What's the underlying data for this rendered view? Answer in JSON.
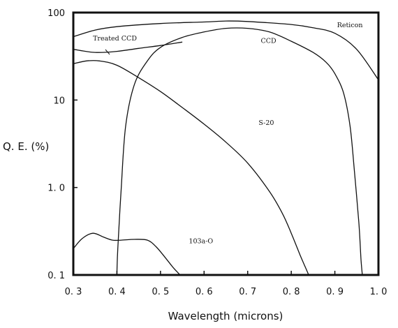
{
  "chart_data": {
    "type": "line",
    "ylabel": "Q. E. (%)",
    "xlabel": "Wavelength (microns)",
    "xlim": [
      0.3,
      1.0
    ],
    "ylim": [
      0.1,
      100
    ],
    "yscale": "log",
    "grid": false,
    "x_ticks": [
      {
        "value": 0.3,
        "label": "0. 3"
      },
      {
        "value": 0.4,
        "label": "0. 4"
      },
      {
        "value": 0.5,
        "label": "0. 5"
      },
      {
        "value": 0.6,
        "label": "0. 6"
      },
      {
        "value": 0.7,
        "label": "0. 7"
      },
      {
        "value": 0.8,
        "label": "0. 8"
      },
      {
        "value": 0.9,
        "label": "0. 9"
      },
      {
        "value": 1.0,
        "label": "1. 0"
      }
    ],
    "y_ticks": [
      {
        "value": 100,
        "label": "100"
      },
      {
        "value": 10,
        "label": "10"
      },
      {
        "value": 1,
        "label": "1. 0"
      },
      {
        "value": 0.1,
        "label": "0. 1"
      }
    ],
    "series": [
      {
        "name": "Reticon",
        "x": [
          0.3,
          0.35,
          0.4,
          0.5,
          0.6,
          0.65,
          0.7,
          0.8,
          0.85,
          0.9,
          0.95,
          1.0
        ],
        "y": [
          53,
          63,
          69,
          75,
          78,
          80,
          79,
          73,
          67,
          58,
          38,
          17
        ]
      },
      {
        "name": "Treated CCD",
        "x": [
          0.3,
          0.35,
          0.4,
          0.45,
          0.5,
          0.55
        ],
        "y": [
          38,
          35,
          36,
          39,
          42,
          46
        ]
      },
      {
        "name": "CCD",
        "x": [
          0.4,
          0.402,
          0.41,
          0.42,
          0.44,
          0.47,
          0.5,
          0.55,
          0.6,
          0.65,
          0.7,
          0.75,
          0.8,
          0.85,
          0.88,
          0.9,
          0.92,
          0.935,
          0.945,
          0.955,
          0.96,
          0.963
        ],
        "y": [
          0.1,
          0.2,
          1.0,
          5.0,
          15,
          28,
          40,
          52,
          60,
          66,
          66,
          60,
          47,
          35,
          27,
          20,
          12,
          5,
          1.5,
          0.4,
          0.15,
          0.1
        ]
      },
      {
        "name": "S-20",
        "x": [
          0.3,
          0.33,
          0.36,
          0.4,
          0.45,
          0.5,
          0.55,
          0.6,
          0.65,
          0.7,
          0.75,
          0.78,
          0.8,
          0.82,
          0.83,
          0.84
        ],
        "y": [
          26,
          28,
          28,
          25,
          18,
          12.5,
          8.2,
          5.3,
          3.3,
          1.9,
          0.9,
          0.5,
          0.3,
          0.17,
          0.13,
          0.1
        ]
      },
      {
        "name": "103a-O",
        "x": [
          0.3,
          0.32,
          0.345,
          0.37,
          0.39,
          0.41,
          0.44,
          0.47,
          0.49,
          0.51,
          0.53,
          0.545
        ],
        "y": [
          0.2,
          0.26,
          0.3,
          0.27,
          0.25,
          0.25,
          0.255,
          0.25,
          0.21,
          0.16,
          0.12,
          0.1
        ]
      }
    ],
    "annotations": [
      {
        "text": "Reticon",
        "series": "Reticon",
        "x": 0.905,
        "y": 68
      },
      {
        "text": "Treated CCD",
        "series": "Treated CCD",
        "x": 0.345,
        "y": 48
      },
      {
        "text": "CCD",
        "series": "CCD",
        "x": 0.73,
        "y": 45
      },
      {
        "text": "S-20",
        "series": "S-20",
        "x": 0.725,
        "y": 5.2
      },
      {
        "text": "103a-O",
        "series": "103a-O",
        "x": 0.565,
        "y": 0.23
      }
    ]
  }
}
